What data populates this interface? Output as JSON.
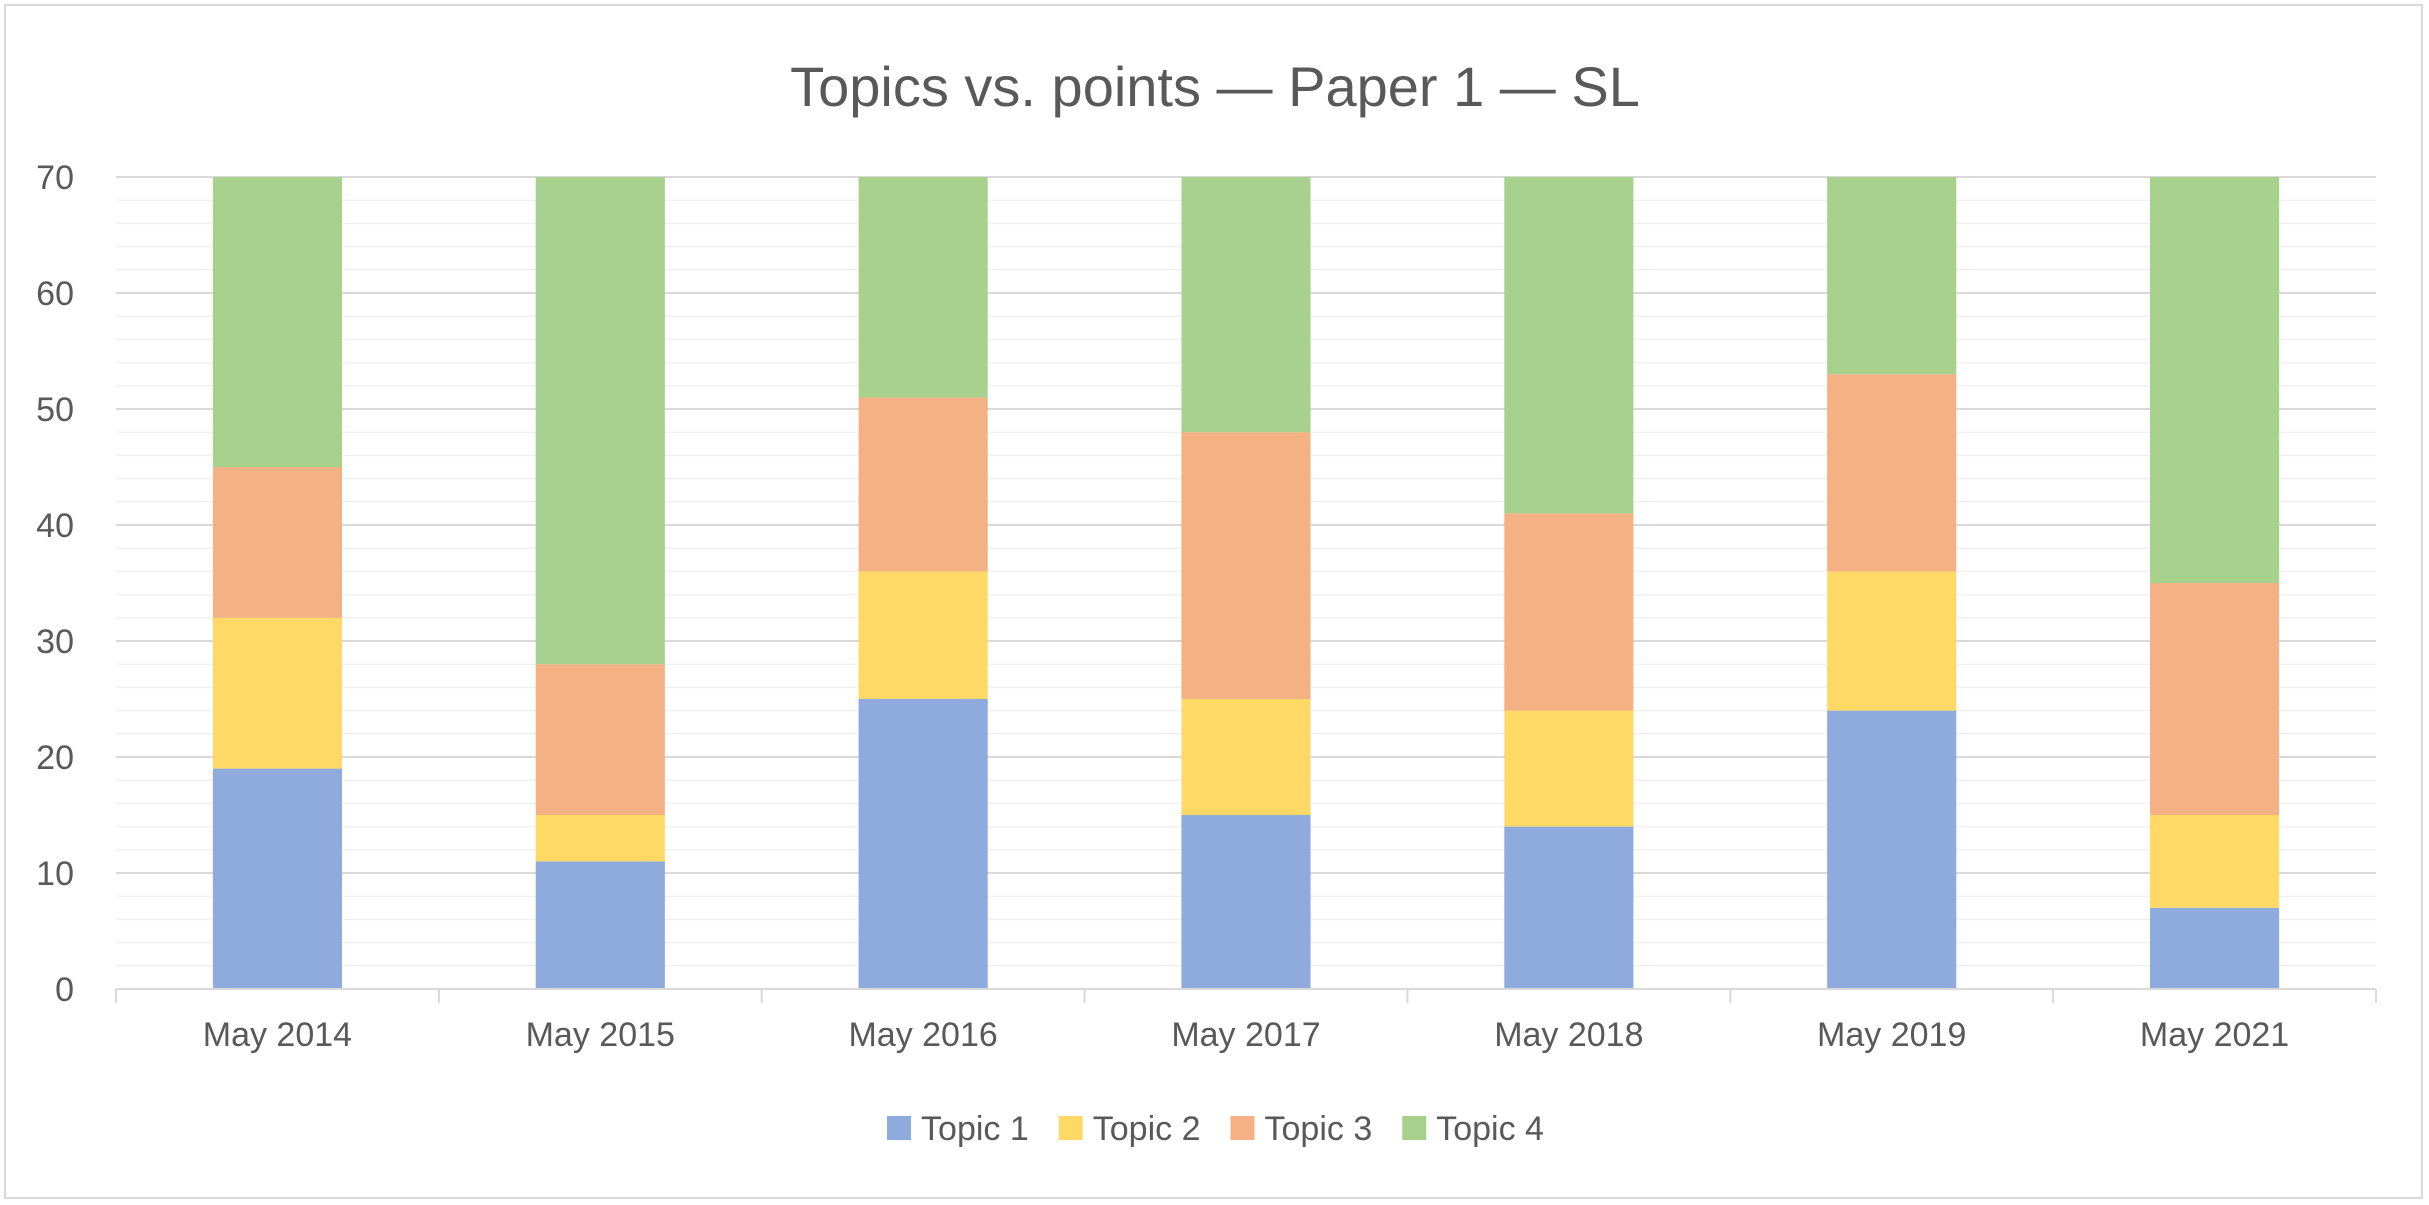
{
  "chart_data": {
    "type": "bar",
    "stacked": true,
    "title": "Topics vs. points — Paper 1 — SL",
    "xlabel": "",
    "ylabel": "",
    "ylim": [
      0,
      70
    ],
    "yticks": [
      0,
      10,
      20,
      30,
      40,
      50,
      60,
      70
    ],
    "grid": true,
    "legend_position": "bottom",
    "categories": [
      "May 2014",
      "May 2015",
      "May 2016",
      "May 2017",
      "May 2018",
      "May 2019",
      "May 2021"
    ],
    "series": [
      {
        "name": "Topic 1",
        "color": "#8FAADC",
        "values": [
          19,
          11,
          25,
          15,
          14,
          24,
          7
        ]
      },
      {
        "name": "Topic 2",
        "color": "#FFD966",
        "values": [
          13,
          4,
          11,
          10,
          10,
          12,
          8
        ]
      },
      {
        "name": "Topic 3",
        "color": "#F4B183",
        "values": [
          13,
          13,
          15,
          23,
          17,
          17,
          20
        ]
      },
      {
        "name": "Topic 4",
        "color": "#A9D18E",
        "values": [
          25,
          42,
          19,
          22,
          29,
          17,
          35
        ]
      }
    ]
  }
}
